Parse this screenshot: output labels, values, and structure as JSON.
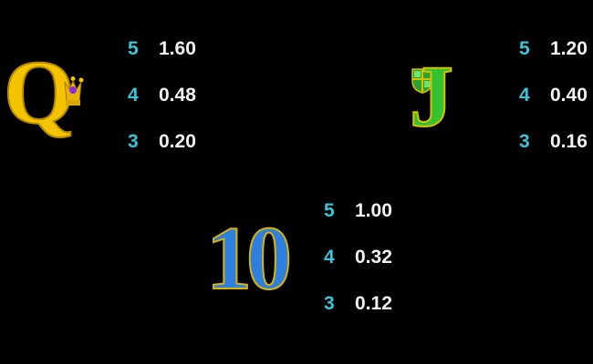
{
  "symbols": [
    {
      "name": "Q",
      "color": "#f5c400",
      "outline": "#b88a00",
      "accent_icon": "crown-icon",
      "pays": [
        {
          "count": "5",
          "value": "1.60"
        },
        {
          "count": "4",
          "value": "0.48"
        },
        {
          "count": "3",
          "value": "0.20"
        }
      ]
    },
    {
      "name": "J",
      "color": "#33c233",
      "outline": "#d8c200",
      "accent_icon": "shield-icon",
      "pays": [
        {
          "count": "5",
          "value": "1.20"
        },
        {
          "count": "4",
          "value": "0.40"
        },
        {
          "count": "3",
          "value": "0.16"
        }
      ]
    },
    {
      "name": "10",
      "color": "#2f7fe0",
      "outline": "#d8b400",
      "pays": [
        {
          "count": "5",
          "value": "1.00"
        },
        {
          "count": "4",
          "value": "0.32"
        },
        {
          "count": "3",
          "value": "0.12"
        }
      ]
    }
  ],
  "colors": {
    "count": "#3cc3d6",
    "value": "#f2f2f2",
    "background": "#000000"
  }
}
